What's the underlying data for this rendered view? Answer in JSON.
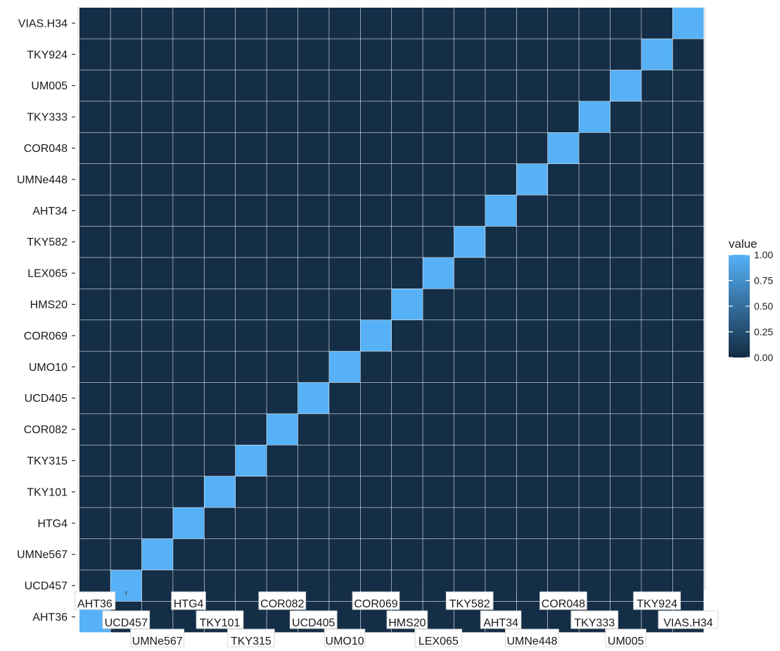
{
  "chart_data": {
    "type": "heatmap",
    "x_categories": [
      "AHT36",
      "UCD457",
      "UMNe567",
      "HTG4",
      "TKY101",
      "TKY315",
      "COR082",
      "UCD405",
      "UMO10",
      "COR069",
      "HMS20",
      "LEX065",
      "TKY582",
      "AHT34",
      "UMNe448",
      "COR048",
      "TKY333",
      "UM005",
      "TKY924",
      "VIAS.H34"
    ],
    "y_categories": [
      "AHT36",
      "UCD457",
      "UMNe567",
      "HTG4",
      "TKY101",
      "TKY315",
      "COR082",
      "UCD405",
      "UMO10",
      "COR069",
      "HMS20",
      "LEX065",
      "TKY582",
      "AHT34",
      "UMNe448",
      "COR048",
      "TKY333",
      "UM005",
      "TKY924",
      "VIAS.H34"
    ],
    "diagonal_value": 1.0,
    "off_diagonal_value": 0.02,
    "fill_scale": {
      "low": "#132b43",
      "high": "#56b1f7",
      "limits": [
        0,
        1
      ]
    },
    "legend": {
      "title": "value",
      "breaks": [
        0.0,
        0.25,
        0.5,
        0.75,
        1.0
      ],
      "labels": [
        "0.00",
        "0.25",
        "0.50",
        "0.75",
        "1.00"
      ],
      "position": "right"
    },
    "panel_background": "#ebebeb"
  }
}
